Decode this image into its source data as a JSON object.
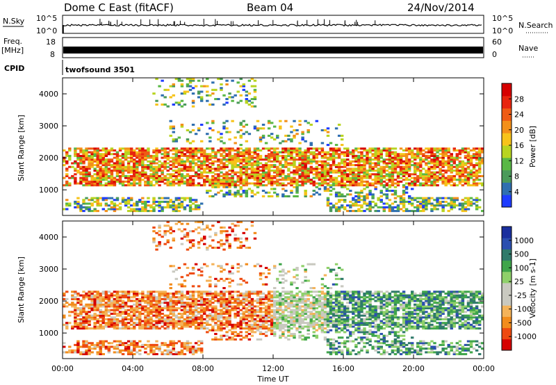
{
  "header": {
    "station": "Dome C East (fitACF)",
    "beam": "Beam 04",
    "date": "24/Nov/2014"
  },
  "nsky_panel": {
    "left_label": "N.Sky",
    "right_label": "N.Search",
    "tick_top": "10^5",
    "tick_bottom": "10^0",
    "right_tick_top": "10^5",
    "right_tick_bottom": "10^0"
  },
  "freq_panel": {
    "left_label": "Freq.",
    "left_unit": "[MHz]",
    "right_label": "Nave",
    "left_ticks": [
      "18",
      "8"
    ],
    "right_ticks": [
      "60",
      "0"
    ]
  },
  "cpid_panel": {
    "label": "CPID",
    "program": "twofsound 3501"
  },
  "colors": {
    "power_scale": [
      "#1e3cff",
      "#2f6fb0",
      "#4a9a5a",
      "#59b845",
      "#b8d420",
      "#f7c31a",
      "#f39019",
      "#ef5b14",
      "#e8250e",
      "#d60000"
    ],
    "velocity_scale": [
      "#d60000",
      "#ee4a10",
      "#f28c1c",
      "#f4b35a",
      "#c9c9c0",
      "#c9c9c0",
      "#8fd06a",
      "#3fa54a",
      "#2f7a6a",
      "#2b4fb0",
      "#1a2f9e"
    ],
    "grid": "#000000"
  },
  "chart_data": [
    {
      "type": "heatmap",
      "name": "power",
      "ylabel": "Slant Range [km]",
      "colorbar_label": "Power [dB]",
      "colorbar_ticks": [
        "4",
        "8",
        "12",
        "16",
        "20",
        "24",
        "28"
      ],
      "ylim": [
        200,
        4500
      ],
      "yticks": [
        "1000",
        "2000",
        "3000",
        "4000"
      ],
      "ytick_values": [
        1000,
        2000,
        3000,
        4000
      ],
      "xlim": [
        "00:00",
        "24:00"
      ],
      "x_hours_range": [
        0,
        24
      ]
    },
    {
      "type": "heatmap",
      "name": "velocity",
      "ylabel": "Slant Range [km]",
      "colorbar_label": "Velocity [m s-1]",
      "colorbar_ticks": [
        "-1000",
        "-500",
        "-100",
        "-25",
        "25",
        "100",
        "500",
        "1000"
      ],
      "ylim": [
        200,
        4500
      ],
      "yticks": [
        "1000",
        "2000",
        "3000",
        "4000"
      ],
      "ytick_values": [
        1000,
        2000,
        3000,
        4000
      ],
      "xlim": [
        "00:00",
        "24:00"
      ],
      "x_hours_range": [
        0,
        24
      ],
      "xlabel": "Time UT",
      "xticks": [
        "00:00",
        "04:00",
        "08:00",
        "12:00",
        "16:00",
        "20:00",
        "00:00"
      ],
      "xtick_hours": [
        0,
        4,
        8,
        12,
        16,
        20,
        24
      ]
    }
  ]
}
